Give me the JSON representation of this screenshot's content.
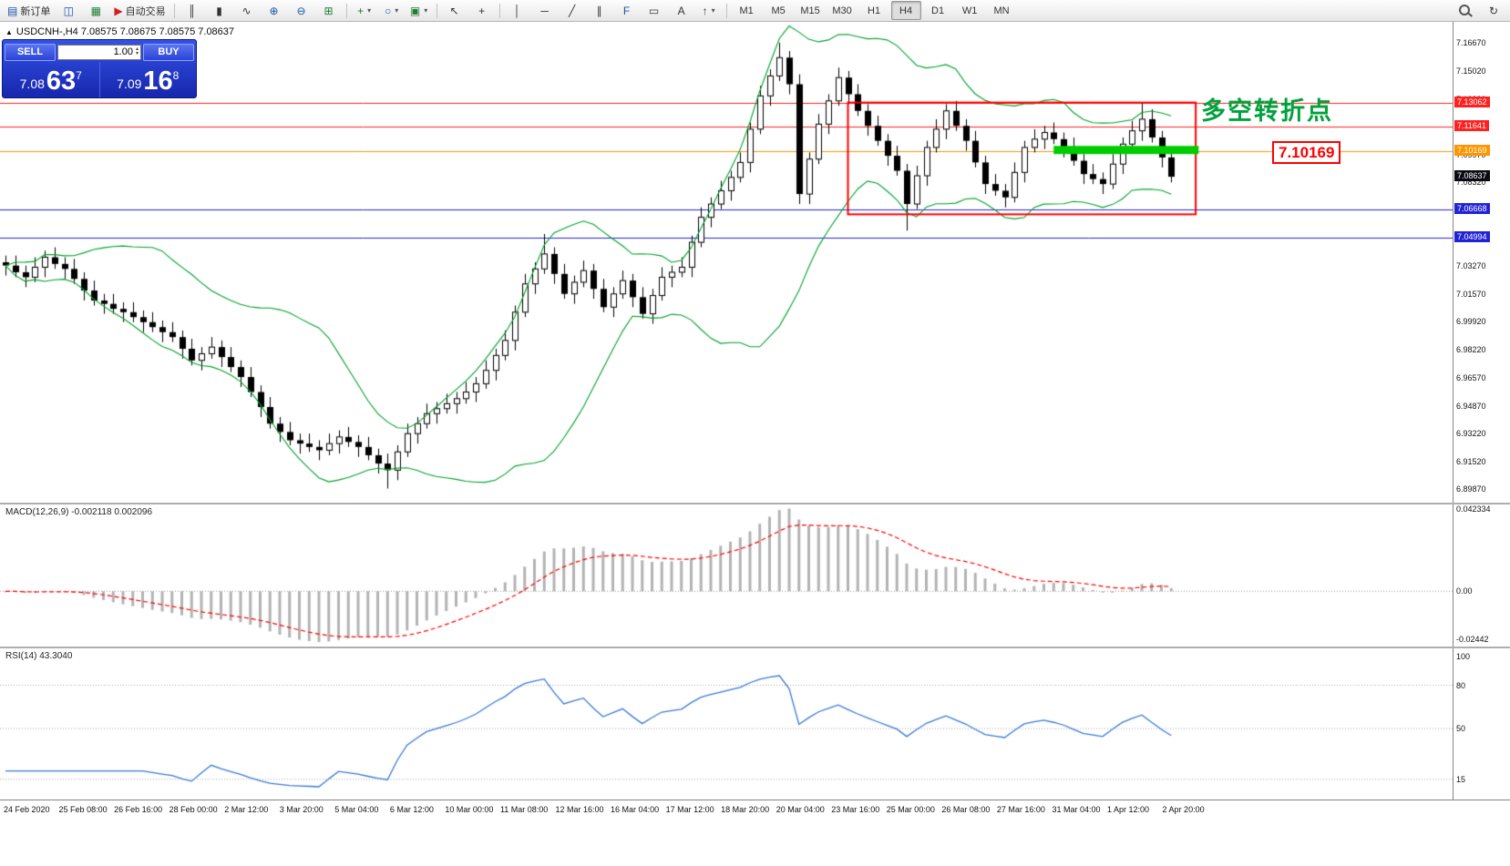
{
  "toolbar": {
    "new_order": {
      "label": "新订单"
    },
    "auto_trading": {
      "label": "自动交易"
    },
    "timeframes": {
      "items": [
        "M1",
        "M5",
        "M15",
        "M30",
        "H1",
        "H4",
        "D1",
        "W1",
        "MN"
      ],
      "active": "H4"
    },
    "icons": {
      "new_order": "▤",
      "charts_window": "◫",
      "profiles": "▦",
      "auto_trading": "▶",
      "bar_chart": "║",
      "candlestick_chart": "▮",
      "line_chart": "∿",
      "zoom_in": "⊕",
      "zoom_out": "⊖",
      "tile_windows": "⊞",
      "indicators_add": "+",
      "periods_list": "○",
      "templates": "▣",
      "cursor": "↖",
      "crosshair": "+",
      "vertical_line": "│",
      "horizontal_line": "─",
      "trend_line": "╱",
      "channel": "∥",
      "fibonacci": "F",
      "shapes": "▭",
      "text": "A",
      "arrows": "↑",
      "dropdown": "▾",
      "refresh": "↻"
    }
  },
  "symbol_header": {
    "collapse_icon": "▲",
    "text": "USDCNH-,H4  7.08575 7.08675 7.08575 7.08637"
  },
  "one_click": {
    "sell_label": "SELL",
    "buy_label": "BUY",
    "lot_value": "1.00",
    "sell_price_small": "7.08",
    "sell_price_big": "63",
    "sell_price_sup": "7",
    "buy_price_small": "7.09",
    "buy_price_big": "16",
    "buy_price_sup": "8"
  },
  "chart_data": [
    {
      "type": "candlestick",
      "symbol": "USDCNH-",
      "timeframe": "H4",
      "y_min": 6.8905,
      "y_max": 7.1795,
      "y_ticks": [
        "7.16670",
        "7.15020",
        "7.13320",
        "7.11670",
        "7.09970",
        "7.08320",
        "7.06620",
        "7.04970",
        "7.03270",
        "7.01570",
        "6.99920",
        "6.98220",
        "6.96570",
        "6.94870",
        "6.93220",
        "6.91520",
        "6.89870"
      ],
      "bollinger": {
        "period": 13,
        "deviation": 2,
        "color": "#00a22a"
      },
      "levels": [
        {
          "price": 7.13062,
          "label": "7.13062",
          "color": "#ff2020"
        },
        {
          "price": 7.11641,
          "label": "7.11641",
          "color": "#ff2020"
        },
        {
          "price": 7.10169,
          "label": "7.10169",
          "color": "#ff9500"
        },
        {
          "price": 7.06668,
          "label": "7.06668",
          "color": "#2323d6"
        },
        {
          "price": 7.04994,
          "label": "7.04994",
          "color": "#2323d6"
        }
      ],
      "bid": {
        "price": 7.08637,
        "label": "7.08637"
      },
      "objects": {
        "rectangle": {
          "bar_start": 86,
          "bar_end": 121.5,
          "price_top": 7.131,
          "price_bottom": 7.0638,
          "color": "#ff0000"
        },
        "green_segment": {
          "bar_start": 107,
          "bar_end": 121.8,
          "price": 7.1025,
          "color": "#00cc00",
          "thickness": 9
        },
        "label_text": "多空转折点",
        "price_tag": "7.10169"
      },
      "candles": [
        [
          7.035,
          7.039,
          7.027,
          7.033
        ],
        [
          7.033,
          7.039,
          7.026,
          7.029
        ],
        [
          7.029,
          7.033,
          7.02,
          7.026
        ],
        [
          7.026,
          7.038,
          7.023,
          7.032
        ],
        [
          7.032,
          7.042,
          7.026,
          7.038
        ],
        [
          7.038,
          7.044,
          7.031,
          7.034
        ],
        [
          7.034,
          7.038,
          7.025,
          7.031
        ],
        [
          7.031,
          7.037,
          7.022,
          7.025
        ],
        [
          7.025,
          7.029,
          7.012,
          7.018
        ],
        [
          7.018,
          7.024,
          7.009,
          7.012
        ],
        [
          7.012,
          7.016,
          7.004,
          7.01
        ],
        [
          7.01,
          7.016,
          7.004,
          7.007
        ],
        [
          7.007,
          7.011,
          6.999,
          7.005
        ],
        [
          7.005,
          7.011,
          6.999,
          7.002
        ],
        [
          7.002,
          7.006,
          6.993,
          6.999
        ],
        [
          6.999,
          7.005,
          6.993,
          6.996
        ],
        [
          6.996,
          7.0,
          6.987,
          6.993
        ],
        [
          6.993,
          6.999,
          6.987,
          6.99
        ],
        [
          6.99,
          6.994,
          6.977,
          6.983
        ],
        [
          6.983,
          6.989,
          6.973,
          6.976
        ],
        [
          6.976,
          6.984,
          6.97,
          6.98
        ],
        [
          6.98,
          6.99,
          6.977,
          6.984
        ],
        [
          6.984,
          6.988,
          6.972,
          6.978
        ],
        [
          6.978,
          6.984,
          6.969,
          6.972
        ],
        [
          6.972,
          6.976,
          6.96,
          6.966
        ],
        [
          6.966,
          6.972,
          6.954,
          6.957
        ],
        [
          6.957,
          6.961,
          6.942,
          6.948
        ],
        [
          6.948,
          6.954,
          6.935,
          6.938
        ],
        [
          6.938,
          6.942,
          6.927,
          6.933
        ],
        [
          6.933,
          6.939,
          6.925,
          6.928
        ],
        [
          6.928,
          6.932,
          6.92,
          6.926
        ],
        [
          6.926,
          6.932,
          6.921,
          6.924
        ],
        [
          6.924,
          6.928,
          6.916,
          6.922
        ],
        [
          6.922,
          6.932,
          6.919,
          6.926
        ],
        [
          6.926,
          6.934,
          6.92,
          6.93
        ],
        [
          6.93,
          6.936,
          6.924,
          6.927
        ],
        [
          6.927,
          6.931,
          6.918,
          6.924
        ],
        [
          6.924,
          6.93,
          6.916,
          6.919
        ],
        [
          6.919,
          6.923,
          6.908,
          6.914
        ],
        [
          6.914,
          6.92,
          6.899,
          6.91
        ],
        [
          6.91,
          6.925,
          6.904,
          6.921
        ],
        [
          6.921,
          6.938,
          6.918,
          6.932
        ],
        [
          6.932,
          6.942,
          6.926,
          6.938
        ],
        [
          6.938,
          6.95,
          6.935,
          6.944
        ],
        [
          6.944,
          6.951,
          6.938,
          6.947
        ],
        [
          6.947,
          6.956,
          6.944,
          6.95
        ],
        [
          6.95,
          6.957,
          6.944,
          6.953
        ],
        [
          6.953,
          6.963,
          6.95,
          6.957
        ],
        [
          6.957,
          6.966,
          6.951,
          6.962
        ],
        [
          6.962,
          6.976,
          6.959,
          6.97
        ],
        [
          6.97,
          6.983,
          6.964,
          6.979
        ],
        [
          6.979,
          6.994,
          6.976,
          6.988
        ],
        [
          6.988,
          7.009,
          6.982,
          7.005
        ],
        [
          7.005,
          7.028,
          7.002,
          7.022
        ],
        [
          7.022,
          7.035,
          7.016,
          7.031
        ],
        [
          7.031,
          7.052,
          7.028,
          7.04
        ],
        [
          7.04,
          7.044,
          7.022,
          7.028
        ],
        [
          7.028,
          7.034,
          7.013,
          7.016
        ],
        [
          7.016,
          7.027,
          7.01,
          7.023
        ],
        [
          7.023,
          7.036,
          7.02,
          7.03
        ],
        [
          7.03,
          7.034,
          7.013,
          7.019
        ],
        [
          7.019,
          7.025,
          7.005,
          7.008
        ],
        [
          7.008,
          7.02,
          7.002,
          7.016
        ],
        [
          7.016,
          7.03,
          7.013,
          7.024
        ],
        [
          7.024,
          7.028,
          7.008,
          7.014
        ],
        [
          7.014,
          7.02,
          7.001,
          7.004
        ],
        [
          7.004,
          7.019,
          6.998,
          7.015
        ],
        [
          7.015,
          7.032,
          7.012,
          7.026
        ],
        [
          7.026,
          7.033,
          7.02,
          7.029
        ],
        [
          7.029,
          7.038,
          7.026,
          7.032
        ],
        [
          7.032,
          7.051,
          7.026,
          7.047
        ],
        [
          7.047,
          7.068,
          7.044,
          7.062
        ],
        [
          7.062,
          7.074,
          7.056,
          7.07
        ],
        [
          7.07,
          7.084,
          7.067,
          7.078
        ],
        [
          7.078,
          7.09,
          7.072,
          7.086
        ],
        [
          7.086,
          7.101,
          7.083,
          7.095
        ],
        [
          7.095,
          7.119,
          7.089,
          7.115
        ],
        [
          7.115,
          7.141,
          7.112,
          7.135
        ],
        [
          7.135,
          7.151,
          7.129,
          7.147
        ],
        [
          7.147,
          7.167,
          7.144,
          7.158
        ],
        [
          7.158,
          7.162,
          7.136,
          7.142
        ],
        [
          7.142,
          7.148,
          7.07,
          7.076
        ],
        [
          7.076,
          7.101,
          7.07,
          7.097
        ],
        [
          7.097,
          7.124,
          7.094,
          7.118
        ],
        [
          7.118,
          7.136,
          7.112,
          7.132
        ],
        [
          7.132,
          7.152,
          7.129,
          7.146
        ],
        [
          7.146,
          7.15,
          7.13,
          7.136
        ],
        [
          7.136,
          7.142,
          7.123,
          7.126
        ],
        [
          7.126,
          7.13,
          7.111,
          7.117
        ],
        [
          7.117,
          7.123,
          7.105,
          7.108
        ],
        [
          7.108,
          7.112,
          7.093,
          7.099
        ],
        [
          7.099,
          7.105,
          7.087,
          7.09
        ],
        [
          7.09,
          7.094,
          7.054,
          7.07
        ],
        [
          7.07,
          7.093,
          7.067,
          7.087
        ],
        [
          7.087,
          7.108,
          7.081,
          7.104
        ],
        [
          7.104,
          7.121,
          7.101,
          7.115
        ],
        [
          7.115,
          7.13,
          7.109,
          7.126
        ],
        [
          7.126,
          7.132,
          7.114,
          7.117
        ],
        [
          7.117,
          7.121,
          7.102,
          7.108
        ],
        [
          7.108,
          7.114,
          7.092,
          7.095
        ],
        [
          7.095,
          7.099,
          7.076,
          7.082
        ],
        [
          7.082,
          7.088,
          7.075,
          7.078
        ],
        [
          7.078,
          7.082,
          7.068,
          7.074
        ],
        [
          7.074,
          7.095,
          7.071,
          7.089
        ],
        [
          7.089,
          7.108,
          7.083,
          7.104
        ],
        [
          7.104,
          7.115,
          7.101,
          7.109
        ],
        [
          7.109,
          7.117,
          7.103,
          7.113
        ],
        [
          7.113,
          7.119,
          7.106,
          7.109
        ],
        [
          7.109,
          7.113,
          7.098,
          7.104
        ],
        [
          7.104,
          7.11,
          7.093,
          7.096
        ],
        [
          7.096,
          7.1,
          7.082,
          7.088
        ],
        [
          7.088,
          7.094,
          7.082,
          7.085
        ],
        [
          7.085,
          7.089,
          7.076,
          7.082
        ],
        [
          7.082,
          7.1,
          7.079,
          7.094
        ],
        [
          7.094,
          7.11,
          7.088,
          7.106
        ],
        [
          7.106,
          7.12,
          7.103,
          7.114
        ],
        [
          7.114,
          7.131,
          7.108,
          7.121
        ],
        [
          7.121,
          7.127,
          7.107,
          7.11
        ],
        [
          7.11,
          7.114,
          7.092,
          7.098
        ],
        [
          7.098,
          7.104,
          7.083,
          7.0864
        ]
      ]
    },
    {
      "type": "macd",
      "label": "MACD(12,26,9) -0.002118 0.002096",
      "params": {
        "fast": 12,
        "slow": 26,
        "signal": 9
      },
      "value": -0.002118,
      "signal_value": 0.002096,
      "y_max": 0.0423,
      "y_min": -0.0244,
      "y_ticks": [
        {
          "v": 0.0423,
          "label": "0.042334"
        },
        {
          "v": 0,
          "label": "0.00"
        },
        {
          "v": -0.0244,
          "label": "-0.02442"
        }
      ],
      "histogram_color": "#b3b3b3",
      "signal_color": "#ff0000"
    },
    {
      "type": "rsi",
      "label": "RSI(14) 43.3040",
      "period": 14,
      "value": 43.304,
      "levels": [
        80,
        50,
        15
      ],
      "y_ticks": [
        {
          "v": 100,
          "label": "100"
        },
        {
          "v": 80,
          "label": "80"
        },
        {
          "v": 50,
          "label": "50"
        },
        {
          "v": 15,
          "label": "15"
        }
      ],
      "color": "#3a7bd5"
    }
  ],
  "time_axis": {
    "labels": [
      "24 Feb 2020",
      "25 Feb 08:00",
      "26 Feb 16:00",
      "28 Feb 00:00",
      "2 Mar 12:00",
      "3 Mar 20:00",
      "5 Mar 04:00",
      "6 Mar 12:00",
      "10 Mar 00:00",
      "11 Mar 08:00",
      "12 Mar 16:00",
      "16 Mar 04:00",
      "17 Mar 12:00",
      "18 Mar 20:00",
      "20 Mar 04:00",
      "23 Mar 16:00",
      "25 Mar 00:00",
      "26 Mar 08:00",
      "27 Mar 16:00",
      "31 Mar 04:00",
      "1 Apr 12:00",
      "2 Apr 20:00"
    ]
  }
}
